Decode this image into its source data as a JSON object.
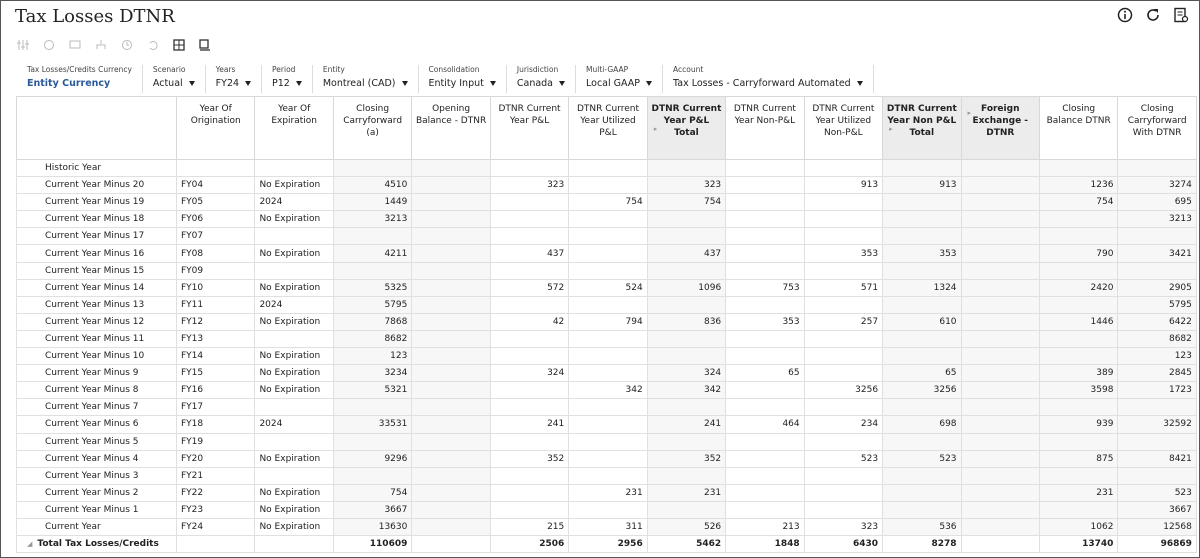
{
  "header": {
    "title": "Tax Losses DTNR"
  },
  "pov": [
    {
      "label": "Tax Losses/Credits Currency",
      "value": "Entity Currency"
    },
    {
      "label": "Scenario",
      "value": "Actual"
    },
    {
      "label": "Years",
      "value": "FY24"
    },
    {
      "label": "Period",
      "value": "P12"
    },
    {
      "label": "Entity",
      "value": "Montreal (CAD)"
    },
    {
      "label": "Consolidation",
      "value": "Entity Input"
    },
    {
      "label": "Jurisdiction",
      "value": "Canada"
    },
    {
      "label": "Multi-GAAP",
      "value": "Local GAAP"
    },
    {
      "label": "Account",
      "value": "Tax Losses - Carryforward Automated"
    }
  ],
  "table": {
    "columns": [
      "Year Of Origination",
      "Year Of Expiration",
      "Closing Carryforward (a)",
      "Opening Balance - DTNR",
      "DTNR Current Year P&L",
      "DTNR Current Year Utilized P&L",
      "DTNR Current Year P&L Total",
      "DTNR Current Year Non-P&L",
      "DTNR Current Year Utilized Non-P&L",
      "DTNR Current Year Non P&L Total",
      "Foreign Exchange - DTNR",
      "Closing Balance DTNR",
      "Closing Carryforward With DTNR"
    ],
    "rows": [
      {
        "label": "Historic Year",
        "cells": [
          null,
          null,
          null,
          null,
          null,
          null,
          null,
          null,
          null,
          null,
          null,
          null,
          null
        ]
      },
      {
        "label": "Current Year Minus 20",
        "cells": [
          "FY04",
          "No Expiration",
          4510,
          null,
          323,
          null,
          323,
          null,
          913,
          913,
          null,
          1236,
          3274
        ]
      },
      {
        "label": "Current Year Minus 19",
        "cells": [
          "FY05",
          "2024",
          1449,
          null,
          null,
          754,
          754,
          null,
          null,
          null,
          null,
          754,
          695
        ]
      },
      {
        "label": "Current Year Minus 18",
        "cells": [
          "FY06",
          "No Expiration",
          3213,
          null,
          null,
          null,
          null,
          null,
          null,
          null,
          null,
          null,
          3213
        ]
      },
      {
        "label": "Current Year Minus 17",
        "cells": [
          "FY07",
          null,
          null,
          null,
          null,
          null,
          null,
          null,
          null,
          null,
          null,
          null,
          null
        ]
      },
      {
        "label": "Current Year Minus 16",
        "cells": [
          "FY08",
          "No Expiration",
          4211,
          null,
          437,
          null,
          437,
          null,
          353,
          353,
          null,
          790,
          3421
        ]
      },
      {
        "label": "Current Year Minus 15",
        "cells": [
          "FY09",
          null,
          null,
          null,
          null,
          null,
          null,
          null,
          null,
          null,
          null,
          null,
          null
        ]
      },
      {
        "label": "Current Year Minus 14",
        "cells": [
          "FY10",
          "No Expiration",
          5325,
          null,
          572,
          524,
          1096,
          753,
          571,
          1324,
          null,
          2420,
          2905
        ]
      },
      {
        "label": "Current Year Minus 13",
        "cells": [
          "FY11",
          "2024",
          5795,
          null,
          null,
          null,
          null,
          null,
          null,
          null,
          null,
          null,
          5795
        ]
      },
      {
        "label": "Current Year Minus 12",
        "cells": [
          "FY12",
          "No Expiration",
          7868,
          null,
          42,
          794,
          836,
          353,
          257,
          610,
          null,
          1446,
          6422
        ]
      },
      {
        "label": "Current Year Minus 11",
        "cells": [
          "FY13",
          null,
          8682,
          null,
          null,
          null,
          null,
          null,
          null,
          null,
          null,
          null,
          8682
        ]
      },
      {
        "label": "Current Year Minus 10",
        "cells": [
          "FY14",
          "No Expiration",
          123,
          null,
          null,
          null,
          null,
          null,
          null,
          null,
          null,
          null,
          123
        ]
      },
      {
        "label": "Current Year Minus 9",
        "cells": [
          "FY15",
          "No Expiration",
          3234,
          null,
          324,
          null,
          324,
          65,
          null,
          65,
          null,
          389,
          2845
        ]
      },
      {
        "label": "Current Year Minus 8",
        "cells": [
          "FY16",
          "No Expiration",
          5321,
          null,
          null,
          342,
          342,
          null,
          3256,
          3256,
          null,
          3598,
          1723
        ]
      },
      {
        "label": "Current Year Minus 7",
        "cells": [
          "FY17",
          null,
          null,
          null,
          null,
          null,
          null,
          null,
          null,
          null,
          null,
          null,
          null
        ]
      },
      {
        "label": "Current Year Minus 6",
        "cells": [
          "FY18",
          "2024",
          33531,
          null,
          241,
          null,
          241,
          464,
          234,
          698,
          null,
          939,
          32592
        ]
      },
      {
        "label": "Current Year Minus 5",
        "cells": [
          "FY19",
          null,
          null,
          null,
          null,
          null,
          null,
          null,
          null,
          null,
          null,
          null,
          null
        ]
      },
      {
        "label": "Current Year Minus 4",
        "cells": [
          "FY20",
          "No Expiration",
          9296,
          null,
          352,
          null,
          352,
          null,
          523,
          523,
          null,
          875,
          8421
        ]
      },
      {
        "label": "Current Year Minus 3",
        "cells": [
          "FY21",
          null,
          null,
          null,
          null,
          null,
          null,
          null,
          null,
          null,
          null,
          null,
          null
        ]
      },
      {
        "label": "Current Year Minus 2",
        "cells": [
          "FY22",
          "No Expiration",
          754,
          null,
          null,
          231,
          231,
          null,
          null,
          null,
          null,
          231,
          523
        ]
      },
      {
        "label": "Current Year Minus 1",
        "cells": [
          "FY23",
          "No Expiration",
          3667,
          null,
          null,
          null,
          null,
          null,
          null,
          null,
          null,
          null,
          3667
        ]
      },
      {
        "label": "Current Year",
        "cells": [
          "FY24",
          "No Expiration",
          13630,
          null,
          215,
          311,
          526,
          213,
          323,
          536,
          null,
          1062,
          12568
        ]
      },
      {
        "label": "Total Tax Losses/Credits",
        "cells": [
          null,
          null,
          110609,
          null,
          2506,
          2956,
          5462,
          1848,
          6430,
          8278,
          null,
          13740,
          96869
        ]
      }
    ]
  }
}
